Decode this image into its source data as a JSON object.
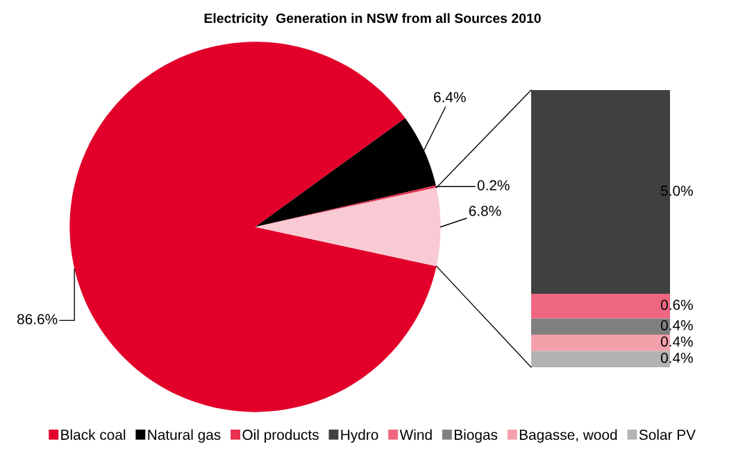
{
  "chart_data": [
    {
      "type": "pie",
      "title": "Electricity  Generation in NSW from all Sources 2010",
      "categories": [
        "Black coal",
        "Natural gas",
        "Oil products",
        null
      ],
      "values": [
        86.6,
        6.4,
        0.2,
        6.8
      ],
      "value_labels": [
        "86.6%",
        "6.4%",
        "0.2%",
        "6.8%"
      ],
      "colors": [
        "#e2002a",
        "#000000",
        "#e8304f",
        "#f9cad3"
      ],
      "legend": "bottom"
    },
    {
      "type": "bar",
      "stacked": true,
      "categories": [
        null
      ],
      "tick_labels": false,
      "legend": "bottom",
      "series": [
        {
          "name": "Solar PV",
          "color": "#b3b3b3",
          "values": [
            0.4
          ],
          "value_labels": [
            "0.4%"
          ]
        },
        {
          "name": "Bagasse, wood",
          "color": "#f4a0aa",
          "values": [
            0.4
          ],
          "value_labels": [
            "0.4%"
          ]
        },
        {
          "name": "Biogas",
          "color": "#808080",
          "values": [
            0.4
          ],
          "value_labels": [
            "0.4%"
          ]
        },
        {
          "name": "Wind",
          "color": "#ee6680",
          "values": [
            0.6
          ],
          "value_labels": [
            "0.6%"
          ]
        },
        {
          "name": "Hydro",
          "color": "#404040",
          "values": [
            5.0
          ],
          "value_labels": [
            "5.0%"
          ]
        }
      ]
    }
  ]
}
